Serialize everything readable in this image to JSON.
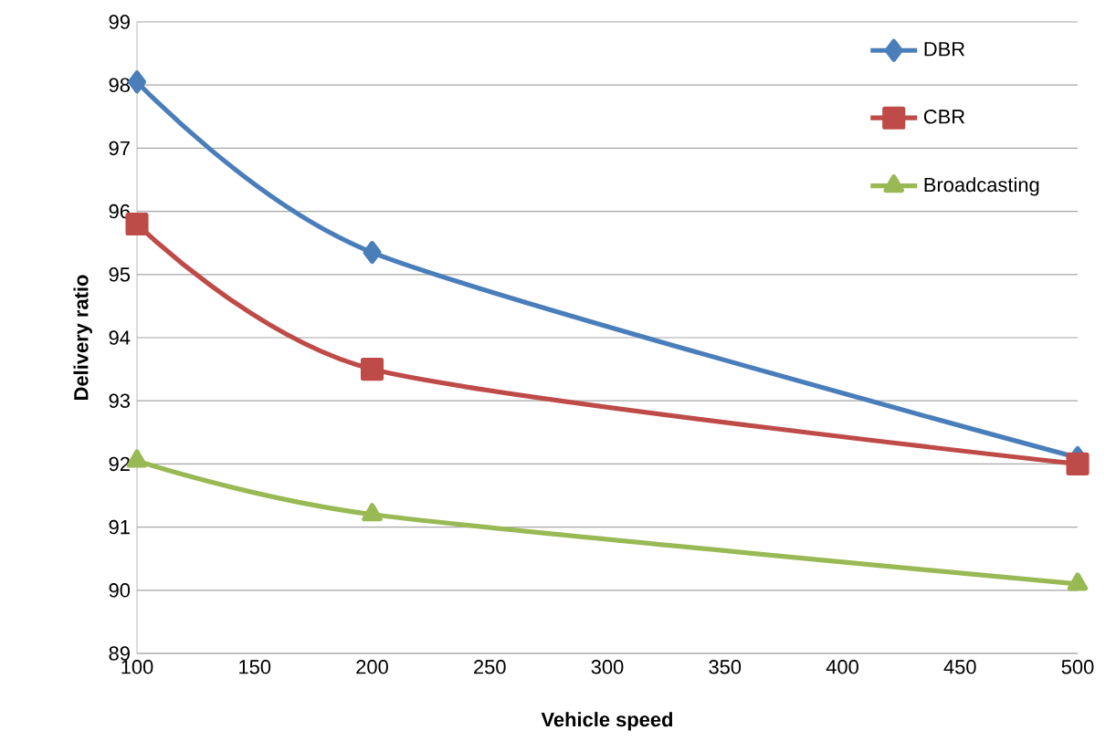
{
  "chart_data": {
    "type": "line",
    "xlabel": "Vehicle speed",
    "ylabel": "Delivery ratio",
    "x": [
      100,
      200,
      500
    ],
    "series": [
      {
        "name": "DBR",
        "color": "#4a7ebb",
        "marker": "diamond",
        "values": [
          98.05,
          95.35,
          92.1
        ]
      },
      {
        "name": "CBR",
        "color": "#be4b48",
        "marker": "square",
        "values": [
          95.8,
          93.5,
          92.0
        ]
      },
      {
        "name": "Broadcasting",
        "color": "#98b954",
        "marker": "triangle",
        "values": [
          92.05,
          91.2,
          90.1
        ]
      }
    ],
    "xlim": [
      100,
      500
    ],
    "xticks": [
      100,
      150,
      200,
      250,
      300,
      350,
      400,
      450,
      500
    ],
    "ylim": [
      89,
      99
    ],
    "yticks": [
      89,
      90,
      91,
      92,
      93,
      94,
      95,
      96,
      97,
      98,
      99
    ],
    "grid": "y",
    "legend": "top right",
    "line_style": "solid"
  }
}
